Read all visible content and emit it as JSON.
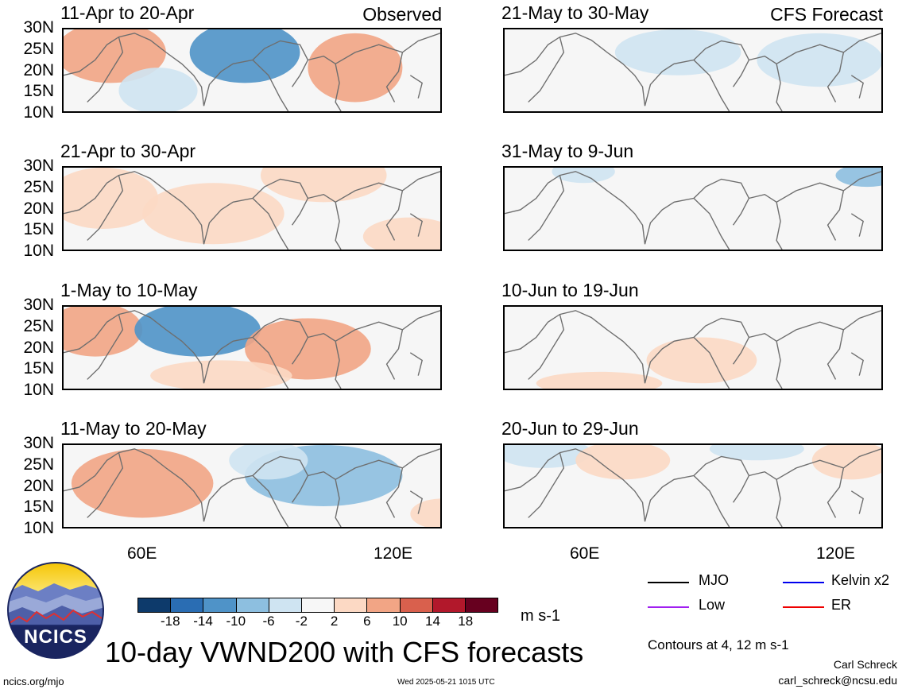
{
  "panels": [
    {
      "title": "11-Apr to 20-Apr",
      "tag": "Observed"
    },
    {
      "title": "21-Apr to 30-Apr",
      "tag": ""
    },
    {
      "title": "1-May to 10-May",
      "tag": ""
    },
    {
      "title": "11-May to 20-May",
      "tag": ""
    },
    {
      "title": "21-May to 30-May",
      "tag": "CFS Forecast"
    },
    {
      "title": "31-May to 9-Jun",
      "tag": ""
    },
    {
      "title": "10-Jun to 19-Jun",
      "tag": ""
    },
    {
      "title": "20-Jun to 29-Jun",
      "tag": ""
    }
  ],
  "lat_labels": [
    "30N",
    "25N",
    "20N",
    "15N",
    "10N"
  ],
  "lon_labels": [
    "60E",
    "120E"
  ],
  "colorbar": {
    "ticks": [
      "-18",
      "-14",
      "-10",
      "-6",
      "-2",
      "2",
      "6",
      "10",
      "14",
      "18"
    ],
    "colors": [
      "#0d3a6b",
      "#2a6db3",
      "#4f93c8",
      "#8dbfe0",
      "#cfe4f2",
      "#f7f7f7",
      "#fcd9c4",
      "#f2a585",
      "#d9604d",
      "#b2182b",
      "#67001f"
    ],
    "units": "m s-1"
  },
  "legend": [
    {
      "label": "MJO",
      "color": "#000000"
    },
    {
      "label": "Kelvin x2",
      "color": "#0000ee"
    },
    {
      "label": "Low",
      "color": "#a020f0"
    },
    {
      "label": "ER",
      "color": "#ee0000"
    }
  ],
  "contours_note": "Contours at 4, 12 m s-1",
  "main_title": "10-day VWND200 with CFS forecasts",
  "logo_text": "NCICS",
  "footer_left": "ncics.org/mjo",
  "footer_center": "Wed 2025-05-21 1015 UTC",
  "author": "Carl Schreck",
  "email": "carl_schreck@ncsu.edu",
  "chart_data": {
    "type": "heatmap",
    "variable": "VWND200",
    "units": "m s-1",
    "xlim_deg_E": [
      40,
      130
    ],
    "ylim_deg_N": [
      10,
      30
    ],
    "color_levels": [
      -18,
      -14,
      -10,
      -6,
      -2,
      2,
      6,
      10,
      14,
      18
    ],
    "contour_levels": [
      4,
      12
    ],
    "legend_position": "bottom-right"
  }
}
